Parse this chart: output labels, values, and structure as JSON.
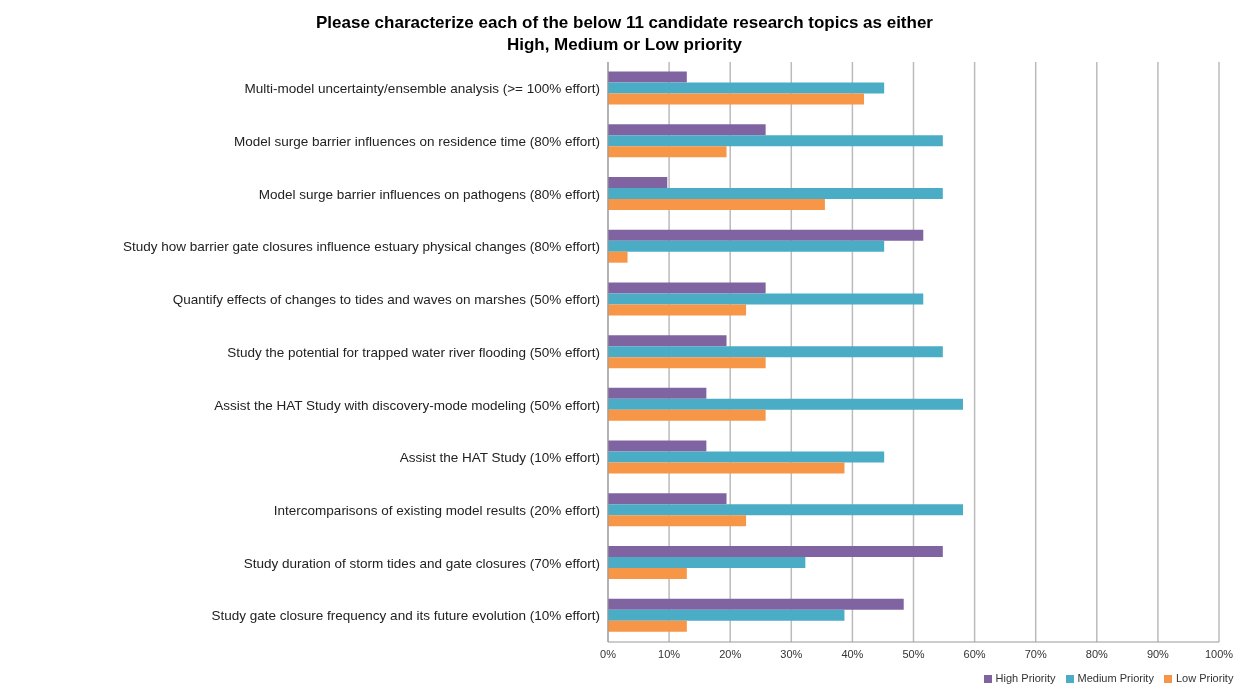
{
  "chart_data": {
    "type": "bar",
    "orientation": "horizontal",
    "title": "Please characterize each of the below 11 candidate research topics as either High, Medium or Low priority",
    "categories": [
      "Multi-model uncertainty/ensemble analysis (>= 100% effort)",
      "Model surge barrier influences on residence time (80% effort)",
      "Model surge barrier influences on pathogens (80% effort)",
      "Study how barrier gate closures influence estuary physical changes (80% effort)",
      "Quantify effects of changes to tides and waves on marshes (50% effort)",
      "Study the potential for trapped water river flooding (50% effort)",
      "Assist the HAT Study with discovery-mode modeling (50% effort)",
      "Assist the HAT Study (10% effort)",
      "Intercomparisons of existing model results (20% effort)",
      "Study duration of storm tides and gate closures (70% effort)",
      "Study gate closure frequency and its future evolution (10% effort)"
    ],
    "series": [
      {
        "name": "High Priority",
        "color": "#8064a2",
        "values": [
          12.9,
          25.8,
          9.7,
          51.6,
          25.8,
          19.4,
          16.1,
          16.1,
          19.4,
          54.8,
          48.4
        ]
      },
      {
        "name": "Medium Priority",
        "color": "#4bacc6",
        "values": [
          45.2,
          54.8,
          54.8,
          45.2,
          51.6,
          54.8,
          58.1,
          45.2,
          58.1,
          32.3,
          38.7
        ]
      },
      {
        "name": "Low Priority",
        "color": "#f79646",
        "values": [
          41.9,
          19.4,
          35.5,
          3.2,
          22.6,
          25.8,
          25.8,
          38.7,
          22.6,
          12.9,
          12.9
        ]
      }
    ],
    "xlim": [
      0,
      100
    ],
    "xticks": [
      {
        "value": 0,
        "label": "0%"
      },
      {
        "value": 10,
        "label": "10%"
      },
      {
        "value": 20,
        "label": "20%"
      },
      {
        "value": 30,
        "label": "30%"
      },
      {
        "value": 40,
        "label": "40%"
      },
      {
        "value": 50,
        "label": "50%"
      },
      {
        "value": 60,
        "label": "60%"
      },
      {
        "value": 70,
        "label": "70%"
      },
      {
        "value": 80,
        "label": "80%"
      },
      {
        "value": 90,
        "label": "90%"
      },
      {
        "value": 100,
        "label": "100%"
      }
    ],
    "grid": "x",
    "legend": "bottom"
  }
}
